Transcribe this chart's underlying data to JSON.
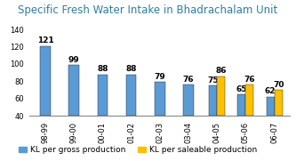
{
  "title": "Specific Fresh Water Intake in Bhadrachalam Unit",
  "categories": [
    "98-99",
    "99-00",
    "00-01",
    "01-02",
    "02-03",
    "03-04",
    "04-05",
    "05-06",
    "06-07"
  ],
  "gross_values": [
    121,
    99,
    88,
    88,
    79,
    76,
    75,
    65,
    62
  ],
  "saleable_values": [
    null,
    null,
    null,
    null,
    null,
    null,
    86,
    76,
    70
  ],
  "gross_color": "#5B9BD5",
  "saleable_color": "#FFC000",
  "bar_width": 0.28,
  "ylim": [
    40,
    148
  ],
  "yticks": [
    40,
    60,
    80,
    100,
    120,
    140
  ],
  "legend_gross": "KL per gross production",
  "legend_saleable": "KL per saleable production",
  "title_color": "#2E7D9E",
  "title_fontsize": 8.5,
  "label_fontsize": 6.5,
  "tick_fontsize": 6,
  "legend_fontsize": 6.5
}
